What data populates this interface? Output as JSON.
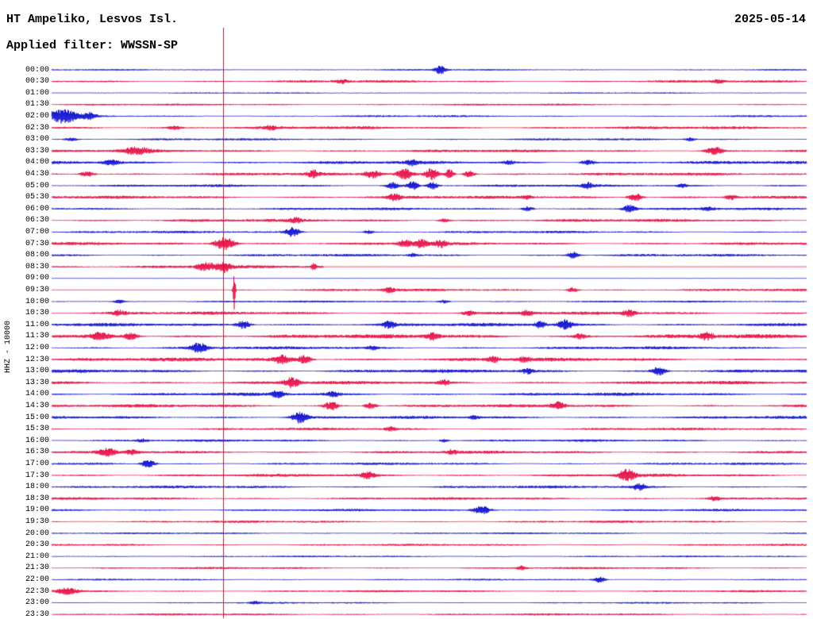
{
  "header": {
    "station": "HT Ampeliko, Lesvos Isl.",
    "date": "2025-05-14",
    "filter": "Applied filter: WWSSN-SP"
  },
  "colors": {
    "blue": "#0000cc",
    "red": "#e4003c",
    "cursor": "#ff0000",
    "background": "#ffffff",
    "text": "#000000"
  },
  "chart_data": {
    "type": "line",
    "subtype": "helicorder-seismogram",
    "title": "HT Ampeliko, Lesvos Isl.",
    "date": "2025-05-14",
    "filter": "WWSSN-SP",
    "channel_scale": "HHZ - 10000",
    "row_interval_minutes": 30,
    "rows_per_day": 48,
    "x_axis": "time of day, one row = 30 minutes",
    "cursor_x_fraction": 0.227,
    "legend": "alternating blue/red traces per 30-minute row; amplitudes in px estimated from image",
    "rows": [
      {
        "time": "00:00",
        "color": "blue",
        "noise": 0.7,
        "events": [
          [
            0.515,
            5,
            5
          ]
        ]
      },
      {
        "time": "00:30",
        "color": "red",
        "noise": 1.2,
        "events": [
          [
            0.385,
            2,
            6
          ],
          [
            0.884,
            2,
            5
          ]
        ]
      },
      {
        "time": "01:00",
        "color": "blue",
        "noise": 0.6,
        "events": []
      },
      {
        "time": "01:30",
        "color": "red",
        "noise": 0.9,
        "events": []
      },
      {
        "time": "02:00",
        "color": "blue",
        "noise": 0.9,
        "events": [
          [
            0.006,
            6,
            9
          ],
          [
            0.022,
            7,
            8
          ],
          [
            0.05,
            4,
            7
          ]
        ]
      },
      {
        "time": "02:30",
        "color": "red",
        "noise": 1.4,
        "events": [
          [
            0.163,
            2,
            6
          ],
          [
            0.29,
            2,
            6
          ]
        ]
      },
      {
        "time": "03:00",
        "color": "blue",
        "noise": 1.0,
        "events": [
          [
            0.026,
            2,
            5
          ],
          [
            0.846,
            2,
            5
          ]
        ]
      },
      {
        "time": "03:30",
        "color": "red",
        "noise": 1.3,
        "events": [
          [
            0.112,
            4,
            12
          ],
          [
            0.878,
            5,
            7
          ]
        ]
      },
      {
        "time": "04:00",
        "color": "blue",
        "noise": 1.5,
        "events": [
          [
            0.079,
            3,
            7
          ],
          [
            0.478,
            3,
            5
          ],
          [
            0.605,
            2,
            5
          ],
          [
            0.71,
            3,
            6
          ]
        ]
      },
      {
        "time": "04:30",
        "color": "red",
        "noise": 1.4,
        "events": [
          [
            0.047,
            3,
            7
          ],
          [
            0.347,
            4,
            5
          ],
          [
            0.425,
            5,
            7
          ],
          [
            0.468,
            6,
            7
          ],
          [
            0.503,
            7,
            6
          ],
          [
            0.527,
            6,
            4
          ],
          [
            0.553,
            4,
            5
          ]
        ]
      },
      {
        "time": "05:00",
        "color": "blue",
        "noise": 1.2,
        "events": [
          [
            0.452,
            4,
            6
          ],
          [
            0.478,
            5,
            5
          ],
          [
            0.505,
            4,
            5
          ],
          [
            0.71,
            3,
            5
          ],
          [
            0.835,
            2,
            5
          ]
        ]
      },
      {
        "time": "05:30",
        "color": "red",
        "noise": 1.5,
        "events": [
          [
            0.454,
            4,
            5
          ],
          [
            0.63,
            2,
            5
          ],
          [
            0.773,
            5,
            6
          ],
          [
            0.9,
            3,
            5
          ]
        ]
      },
      {
        "time": "06:00",
        "color": "blue",
        "noise": 1.2,
        "events": [
          [
            0.631,
            3,
            5
          ],
          [
            0.765,
            5,
            6
          ],
          [
            0.87,
            2,
            5
          ]
        ]
      },
      {
        "time": "06:30",
        "color": "red",
        "noise": 1.4,
        "events": [
          [
            0.324,
            3,
            5
          ],
          [
            0.52,
            2,
            5
          ]
        ]
      },
      {
        "time": "07:00",
        "color": "blue",
        "noise": 1.1,
        "events": [
          [
            0.319,
            6,
            6
          ],
          [
            0.42,
            2,
            4
          ]
        ]
      },
      {
        "time": "07:30",
        "color": "red",
        "noise": 1.4,
        "events": [
          [
            0.229,
            8,
            9
          ],
          [
            0.468,
            4,
            6
          ],
          [
            0.49,
            5,
            6
          ],
          [
            0.515,
            4,
            5
          ]
        ]
      },
      {
        "time": "08:00",
        "color": "blue",
        "noise": 1.2,
        "events": [
          [
            0.479,
            2,
            4
          ],
          [
            0.691,
            4,
            5
          ]
        ]
      },
      {
        "time": "08:30",
        "color": "red",
        "noise": 1.5,
        "events": [
          [
            0.205,
            5,
            8
          ],
          [
            0.228,
            6,
            6
          ],
          [
            0.347,
            5,
            2
          ]
        ],
        "flat": [
          [
            0.36,
            1
          ]
        ]
      },
      {
        "time": "09:00",
        "color": "blue",
        "noise": 0.2,
        "events": [],
        "flat": [
          [
            0,
            1
          ]
        ]
      },
      {
        "time": "09:30",
        "color": "red",
        "noise": 1.2,
        "events": [
          [
            0.2419,
            24,
            0.9
          ],
          [
            0.447,
            3,
            5
          ],
          [
            0.69,
            3,
            5
          ]
        ],
        "flat": [
          [
            0,
            0.235
          ]
        ]
      },
      {
        "time": "10:00",
        "color": "blue",
        "noise": 0.9,
        "events": [
          [
            0.09,
            2,
            5
          ],
          [
            0.52,
            2,
            5
          ]
        ]
      },
      {
        "time": "10:30",
        "color": "red",
        "noise": 1.5,
        "events": [
          [
            0.09,
            3,
            6
          ],
          [
            0.552,
            3,
            5
          ],
          [
            0.63,
            3,
            5
          ],
          [
            0.765,
            4,
            6
          ]
        ]
      },
      {
        "time": "11:00",
        "color": "blue",
        "noise": 1.6,
        "events": [
          [
            0.254,
            5,
            6
          ],
          [
            0.447,
            4,
            6
          ],
          [
            0.647,
            4,
            5
          ],
          [
            0.68,
            6,
            6
          ]
        ]
      },
      {
        "time": "11:30",
        "color": "red",
        "noise": 2.0,
        "events": [
          [
            0.065,
            4,
            8
          ],
          [
            0.105,
            4,
            6
          ],
          [
            0.505,
            4,
            6
          ],
          [
            0.7,
            3,
            5
          ],
          [
            0.868,
            4,
            6
          ]
        ]
      },
      {
        "time": "12:00",
        "color": "blue",
        "noise": 1.4,
        "events": [
          [
            0.195,
            6,
            7
          ],
          [
            0.425,
            2,
            4
          ]
        ]
      },
      {
        "time": "12:30",
        "color": "red",
        "noise": 1.8,
        "events": [
          [
            0.305,
            5,
            8
          ],
          [
            0.335,
            5,
            6
          ],
          [
            0.585,
            3,
            5
          ],
          [
            0.625,
            3,
            5
          ]
        ]
      },
      {
        "time": "13:00",
        "color": "blue",
        "noise": 1.6,
        "events": [
          [
            0.63,
            3,
            5
          ],
          [
            0.804,
            5,
            6
          ]
        ]
      },
      {
        "time": "13:30",
        "color": "red",
        "noise": 1.6,
        "events": [
          [
            0.318,
            6,
            7
          ],
          [
            0.52,
            3,
            5
          ]
        ]
      },
      {
        "time": "14:00",
        "color": "blue",
        "noise": 1.5,
        "events": [
          [
            0.3,
            4,
            6
          ],
          [
            0.373,
            3,
            5
          ]
        ]
      },
      {
        "time": "14:30",
        "color": "red",
        "noise": 1.5,
        "events": [
          [
            0.37,
            5,
            6
          ],
          [
            0.423,
            4,
            5
          ],
          [
            0.671,
            5,
            6
          ]
        ]
      },
      {
        "time": "15:00",
        "color": "blue",
        "noise": 1.4,
        "events": [
          [
            0.329,
            7,
            7
          ],
          [
            0.56,
            2,
            4
          ]
        ]
      },
      {
        "time": "15:30",
        "color": "red",
        "noise": 1.2,
        "events": [
          [
            0.45,
            2,
            5
          ]
        ]
      },
      {
        "time": "16:00",
        "color": "blue",
        "noise": 1.1,
        "events": [
          [
            0.121,
            2,
            5
          ],
          [
            0.52,
            2,
            4
          ]
        ]
      },
      {
        "time": "16:30",
        "color": "red",
        "noise": 1.4,
        "events": [
          [
            0.074,
            4,
            7
          ],
          [
            0.107,
            3,
            5
          ],
          [
            0.531,
            3,
            5
          ]
        ]
      },
      {
        "time": "17:00",
        "color": "blue",
        "noise": 1.1,
        "events": [
          [
            0.128,
            5,
            6
          ]
        ]
      },
      {
        "time": "17:30",
        "color": "red",
        "noise": 1.4,
        "events": [
          [
            0.419,
            4,
            6
          ],
          [
            0.762,
            7,
            7
          ]
        ]
      },
      {
        "time": "18:00",
        "color": "blue",
        "noise": 1.3,
        "events": [
          [
            0.778,
            4,
            6
          ]
        ]
      },
      {
        "time": "18:30",
        "color": "red",
        "noise": 1.2,
        "events": [
          [
            0.878,
            3,
            5
          ]
        ]
      },
      {
        "time": "19:00",
        "color": "blue",
        "noise": 1.1,
        "events": [
          [
            0.57,
            5,
            8
          ]
        ]
      },
      {
        "time": "19:30",
        "color": "red",
        "noise": 1.1,
        "events": []
      },
      {
        "time": "20:00",
        "color": "blue",
        "noise": 0.8,
        "events": []
      },
      {
        "time": "20:30",
        "color": "red",
        "noise": 1.0,
        "events": []
      },
      {
        "time": "21:00",
        "color": "blue",
        "noise": 0.8,
        "events": []
      },
      {
        "time": "21:30",
        "color": "red",
        "noise": 1.0,
        "events": [
          [
            0.623,
            2.5,
            4
          ]
        ]
      },
      {
        "time": "22:00",
        "color": "blue",
        "noise": 0.8,
        "events": [
          [
            0.726,
            3.5,
            5
          ]
        ]
      },
      {
        "time": "22:30",
        "color": "red",
        "noise": 1.0,
        "events": [
          [
            0.02,
            4,
            9
          ]
        ]
      },
      {
        "time": "23:00",
        "color": "blue",
        "noise": 0.8,
        "events": [
          [
            0.27,
            1.5,
            4
          ]
        ]
      },
      {
        "time": "23:30",
        "color": "red",
        "noise": 1.0,
        "events": []
      }
    ]
  }
}
